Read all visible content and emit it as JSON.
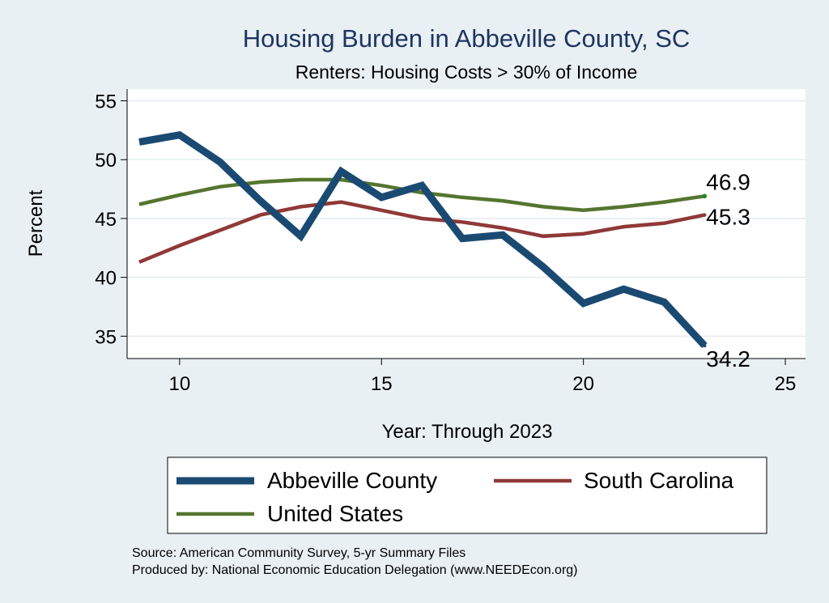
{
  "chart_data": {
    "type": "line",
    "title": "Housing Burden in Abbeville County, SC",
    "subtitle": "Renters: Housing Costs > 30% of Income",
    "xlabel": "Year: Through 2023",
    "ylabel": "Percent",
    "x": [
      9,
      10,
      11,
      12,
      13,
      14,
      15,
      16,
      17,
      18,
      19,
      20,
      21,
      22,
      23
    ],
    "xlim": [
      8.7,
      25.5
    ],
    "ylim": [
      33.1,
      56.0
    ],
    "xticks": [
      "10",
      "15",
      "20",
      "25"
    ],
    "yticks": [
      "35",
      "40",
      "45",
      "50",
      "55"
    ],
    "grid": true,
    "series": [
      {
        "name": "Abbeville County",
        "color": "#1a4a72",
        "values": [
          51.5,
          52.1,
          49.8,
          46.5,
          43.5,
          49.0,
          46.8,
          47.8,
          43.3,
          43.6,
          40.9,
          37.8,
          39.0,
          37.9,
          34.2
        ],
        "end_label": "34.2"
      },
      {
        "name": "South Carolina",
        "color": "#903838",
        "values": [
          41.3,
          42.7,
          44.0,
          45.3,
          46.0,
          46.4,
          45.7,
          45.0,
          44.7,
          44.2,
          43.5,
          43.7,
          44.3,
          44.6,
          45.3
        ],
        "end_label": "45.3"
      },
      {
        "name": "United States",
        "color": "#55752f",
        "values": [
          46.2,
          47.0,
          47.7,
          48.1,
          48.3,
          48.3,
          47.8,
          47.2,
          46.8,
          46.5,
          46.0,
          45.7,
          46.0,
          46.4,
          46.9
        ],
        "end_label": "46.9"
      }
    ],
    "legend": {
      "position": "bottom",
      "entries": [
        "Abbeville County",
        "South Carolina",
        "United States"
      ]
    },
    "notes": [
      "Source: American Community Survey, 5-yr Summary Files",
      "Produced by: National Economic Education Delegation (www.NEEDEcon.org)"
    ]
  },
  "colors": {
    "background": "#e9f0f3",
    "plot_background": "#ffffff",
    "grid": "#e4ecef",
    "title": "#1d3560"
  }
}
